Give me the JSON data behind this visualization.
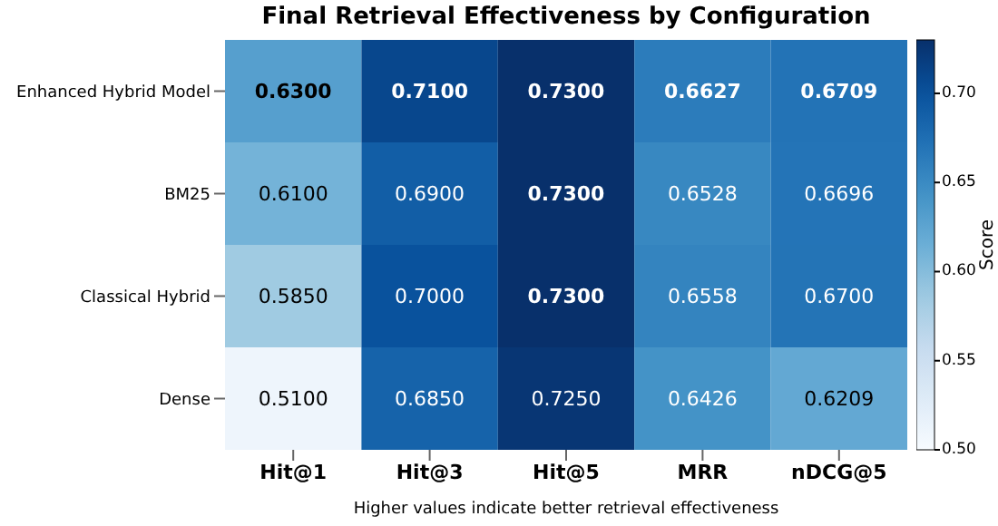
{
  "chart_data": {
    "type": "heatmap",
    "title": "Final Retrieval Effectiveness by Configuration",
    "categories": [
      "Hit@1",
      "Hit@3",
      "Hit@5",
      "MRR",
      "nDCG@5"
    ],
    "y_categories": [
      "Enhanced Hybrid Model",
      "BM25",
      "Classical Hybrid",
      "Dense"
    ],
    "cells": [
      [
        0.63,
        0.71,
        0.73,
        0.6627,
        0.6709
      ],
      [
        0.61,
        0.69,
        0.73,
        0.6528,
        0.6696
      ],
      [
        0.585,
        0.7,
        0.73,
        0.6558,
        0.67
      ],
      [
        0.51,
        0.685,
        0.725,
        0.6426,
        0.6209
      ]
    ],
    "cell_labels": [
      [
        "0.6300",
        "0.7100",
        "0.7300",
        "0.6627",
        "0.6709"
      ],
      [
        "0.6100",
        "0.6900",
        "0.7300",
        "0.6528",
        "0.6696"
      ],
      [
        "0.5850",
        "0.7000",
        "0.7300",
        "0.6558",
        "0.6700"
      ],
      [
        "0.5100",
        "0.6850",
        "0.7250",
        "0.6426",
        "0.6209"
      ]
    ],
    "clim": [
      0.5,
      0.73
    ],
    "cticks": [
      {
        "value": 0.5,
        "label": "0.50"
      },
      0.55,
      {
        "value": 0.6,
        "label": "0.60"
      },
      0.65,
      {
        "value": 0.7,
        "label": "0.70"
      }
    ],
    "clabel": "Score",
    "annotations": [
      "Higher values indicate better retrieval effectiveness"
    ]
  }
}
